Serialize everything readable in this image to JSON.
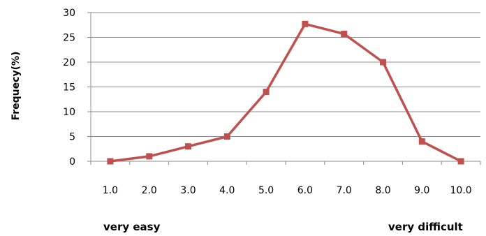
{
  "chart_data": {
    "type": "line",
    "title": "",
    "xlabel": "",
    "ylabel": "Frequecy(%)",
    "x": [
      "1.0",
      "2.0",
      "3.0",
      "4.0",
      "5.0",
      "6.0",
      "7.0",
      "8.0",
      "9.0",
      "10.0"
    ],
    "series": [
      {
        "values": [
          0,
          1,
          3,
          5,
          14,
          27.7,
          25.7,
          20,
          4,
          0
        ],
        "color": "#c0504d",
        "marker": "square"
      }
    ],
    "ylim": [
      0,
      30
    ],
    "yticks": [
      "0",
      "5",
      "10",
      "15",
      "20",
      "25",
      "30"
    ],
    "grid": true,
    "legend": "none",
    "annotations": {
      "left": "very easy",
      "right": "very difficult"
    }
  }
}
